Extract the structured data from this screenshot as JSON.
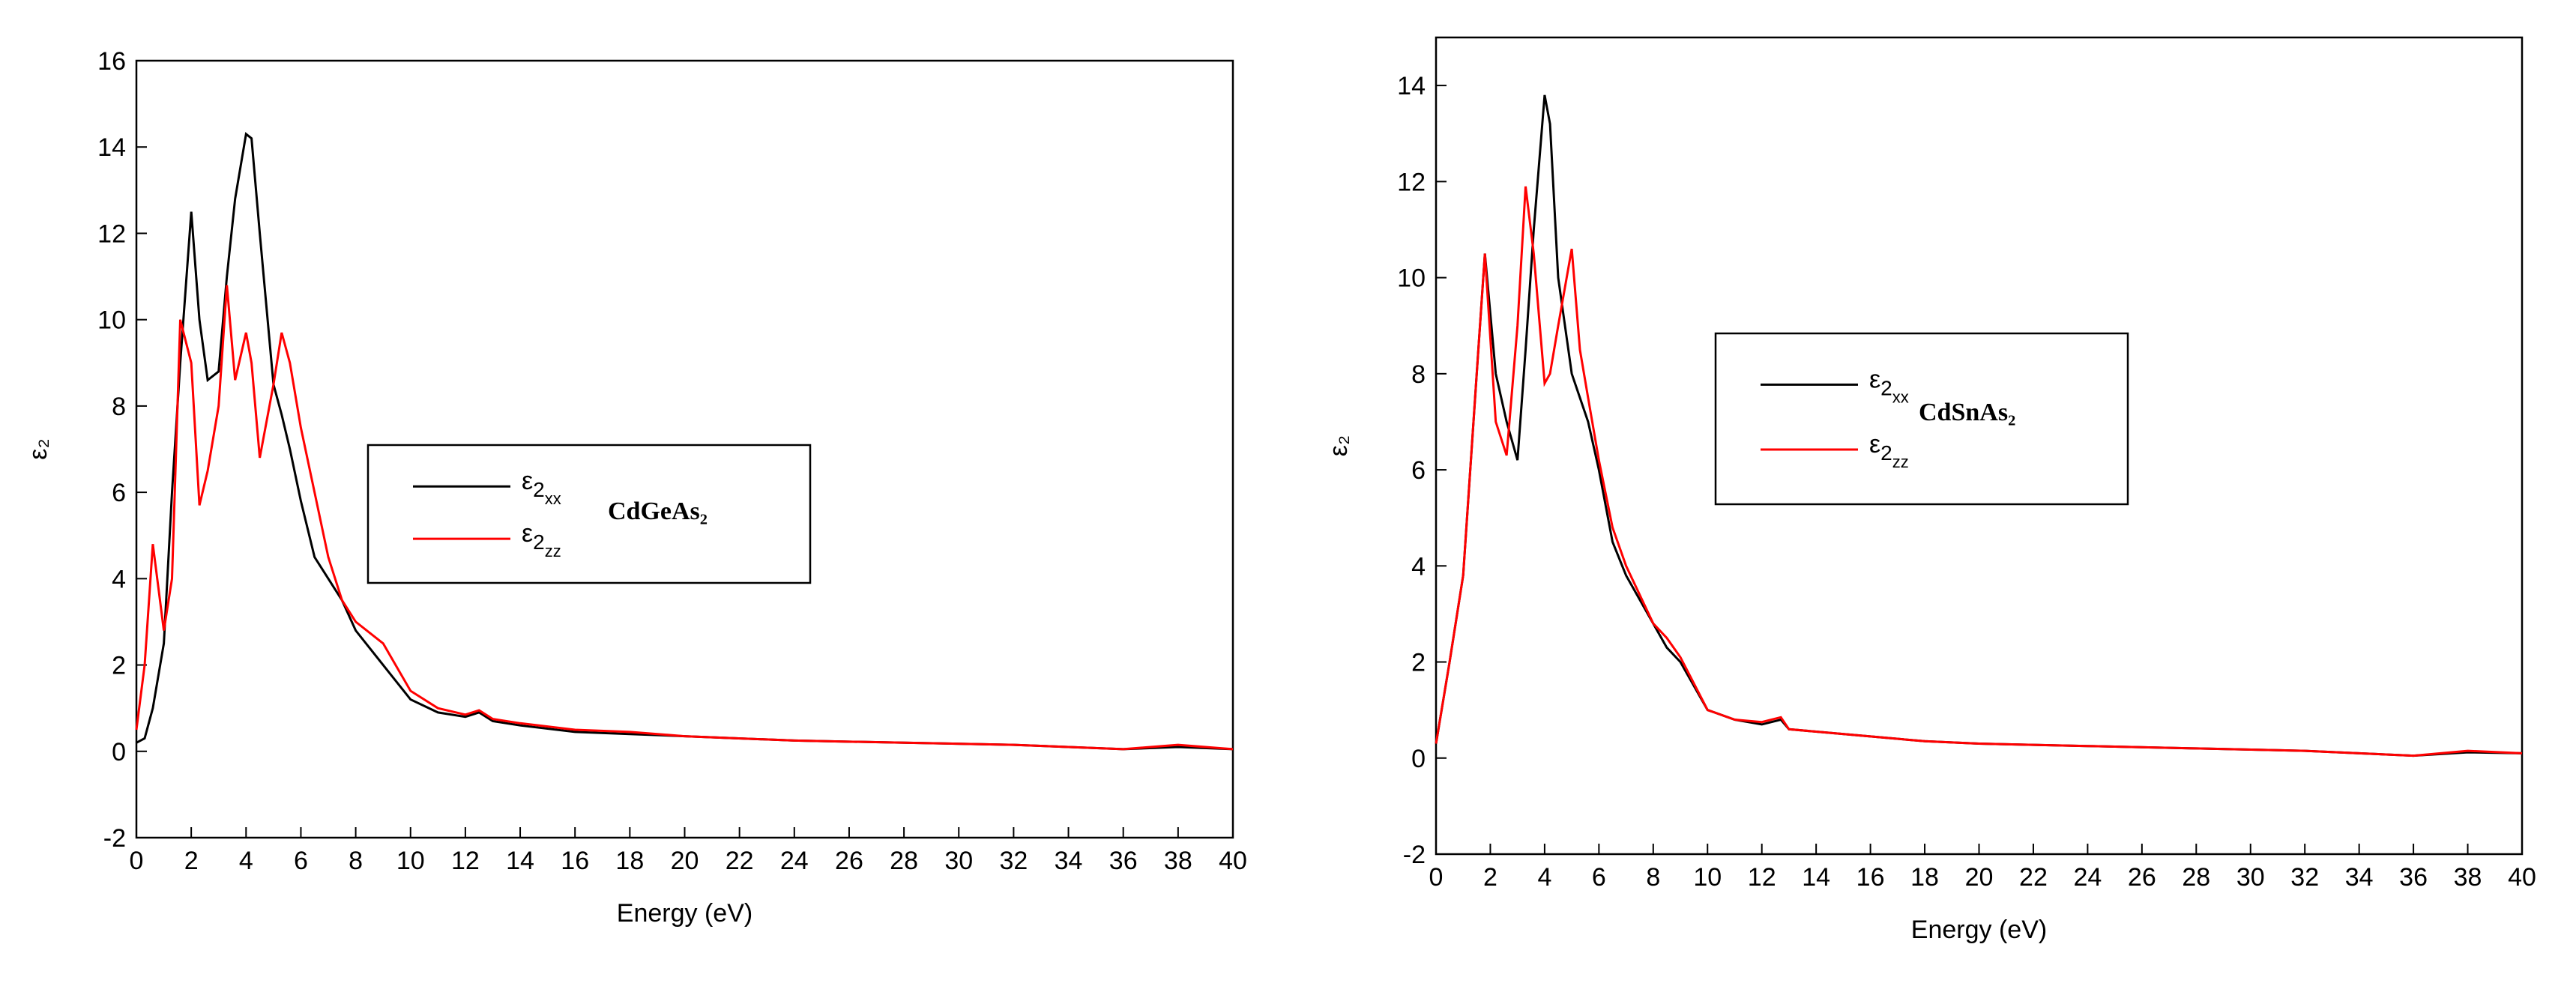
{
  "chart_data": [
    {
      "type": "line",
      "x_label": "Energy (eV)",
      "y_label": "ε₂",
      "annotation": "CdGeAs₂",
      "x": [
        0,
        0.3,
        0.6,
        1,
        1.3,
        1.6,
        2,
        2.3,
        2.6,
        3,
        3.3,
        3.6,
        4,
        4.2,
        4.5,
        5,
        5.3,
        5.6,
        6,
        6.5,
        7,
        7.5,
        8,
        9,
        10,
        11,
        12,
        12.5,
        13,
        14,
        16,
        18,
        20,
        24,
        28,
        32,
        34,
        36,
        38,
        40
      ],
      "series": [
        {
          "name": "ε2xx",
          "color": "#000000",
          "values": [
            0.2,
            0.3,
            1,
            2.5,
            6,
            9,
            12.5,
            10,
            8.6,
            8.8,
            11,
            12.8,
            14.3,
            14.2,
            12,
            8.5,
            7.8,
            7,
            5.8,
            4.5,
            4,
            3.5,
            2.8,
            2,
            1.2,
            0.9,
            0.8,
            0.9,
            0.7,
            0.6,
            0.45,
            0.4,
            0.35,
            0.25,
            0.2,
            0.15,
            0.1,
            0.05,
            0.1,
            0.05
          ]
        },
        {
          "name": "ε2zz",
          "color": "#ff0000",
          "values": [
            0.5,
            2,
            4.8,
            2.8,
            4,
            10,
            9,
            5.7,
            6.5,
            8,
            10.8,
            8.6,
            9.7,
            9,
            6.8,
            8.5,
            9.7,
            9,
            7.5,
            6,
            4.5,
            3.5,
            3,
            2.5,
            1.4,
            1.0,
            0.85,
            0.95,
            0.75,
            0.65,
            0.5,
            0.45,
            0.35,
            0.25,
            0.2,
            0.15,
            0.1,
            0.05,
            0.15,
            0.05
          ]
        }
      ],
      "xlim": [
        0,
        40
      ],
      "xticks": [
        0,
        2,
        4,
        6,
        8,
        10,
        12,
        14,
        16,
        18,
        20,
        22,
        24,
        26,
        28,
        30,
        32,
        34,
        36,
        38,
        40
      ],
      "ylim": [
        -2,
        16
      ],
      "yticks": [
        -2,
        0,
        2,
        4,
        6,
        8,
        10,
        12,
        14,
        16
      ]
    },
    {
      "type": "line",
      "x_label": "Energy (eV)",
      "y_label": "ε₂",
      "annotation": "CdSnAs₂",
      "x": [
        0,
        0.5,
        1,
        1.5,
        1.8,
        2.2,
        2.6,
        3,
        3.3,
        3.6,
        4,
        4.2,
        4.5,
        5,
        5.3,
        5.6,
        6,
        6.5,
        7,
        8,
        8.5,
        9,
        10,
        11,
        12,
        12.7,
        13,
        14,
        16,
        18,
        20,
        24,
        28,
        32,
        34,
        36,
        38,
        40
      ],
      "series": [
        {
          "name": "ε2xx",
          "color": "#000000",
          "values": [
            0.3,
            2,
            3.8,
            8,
            10.5,
            8,
            7,
            6.2,
            8.5,
            11,
            13.8,
            13.2,
            10,
            8,
            7.5,
            7,
            6,
            4.5,
            3.8,
            2.8,
            2.3,
            2,
            1,
            0.8,
            0.7,
            0.8,
            0.6,
            0.55,
            0.45,
            0.35,
            0.3,
            0.25,
            0.2,
            0.15,
            0.1,
            0.05,
            0.12,
            0.1
          ]
        },
        {
          "name": "ε2zz",
          "color": "#ff0000",
          "values": [
            0.3,
            2,
            3.8,
            8,
            10.5,
            7,
            6.3,
            9,
            11.9,
            10.5,
            7.8,
            8,
            9,
            10.6,
            8.5,
            7.5,
            6.2,
            4.8,
            4,
            2.8,
            2.5,
            2.1,
            1,
            0.8,
            0.75,
            0.85,
            0.6,
            0.55,
            0.45,
            0.35,
            0.3,
            0.25,
            0.2,
            0.15,
            0.1,
            0.05,
            0.15,
            0.1
          ]
        }
      ],
      "xlim": [
        0,
        40
      ],
      "xticks": [
        0,
        2,
        4,
        6,
        8,
        10,
        12,
        14,
        16,
        18,
        20,
        22,
        24,
        26,
        28,
        30,
        32,
        34,
        36,
        38,
        40
      ],
      "ylim": [
        -2,
        15
      ],
      "yticks": [
        -2,
        0,
        2,
        4,
        6,
        8,
        10,
        12,
        14
      ]
    }
  ]
}
